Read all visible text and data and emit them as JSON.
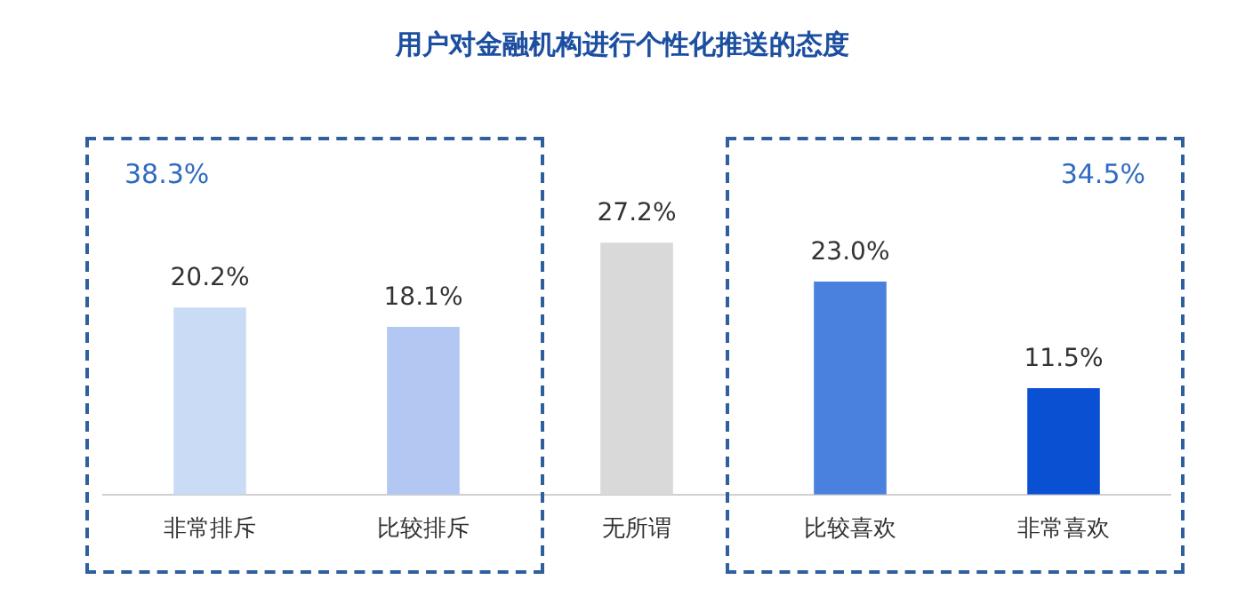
{
  "chart_data": {
    "type": "bar",
    "title": "用户对金融机构进行个性化推送的态度",
    "categories": [
      "非常排斥",
      "比较排斥",
      "无所谓",
      "比较喜欢",
      "非常喜欢"
    ],
    "values": [
      20.2,
      18.1,
      27.2,
      23.0,
      11.5
    ],
    "value_labels": [
      "20.2%",
      "18.1%",
      "27.2%",
      "23.0%",
      "11.5%"
    ],
    "colors": [
      "#c9dbf5",
      "#b2c8f2",
      "#d9d9d9",
      "#4a80de",
      "#0a50d2"
    ],
    "annotations": [
      "38.3%",
      "34.5%"
    ],
    "grid": false,
    "legend": false
  }
}
